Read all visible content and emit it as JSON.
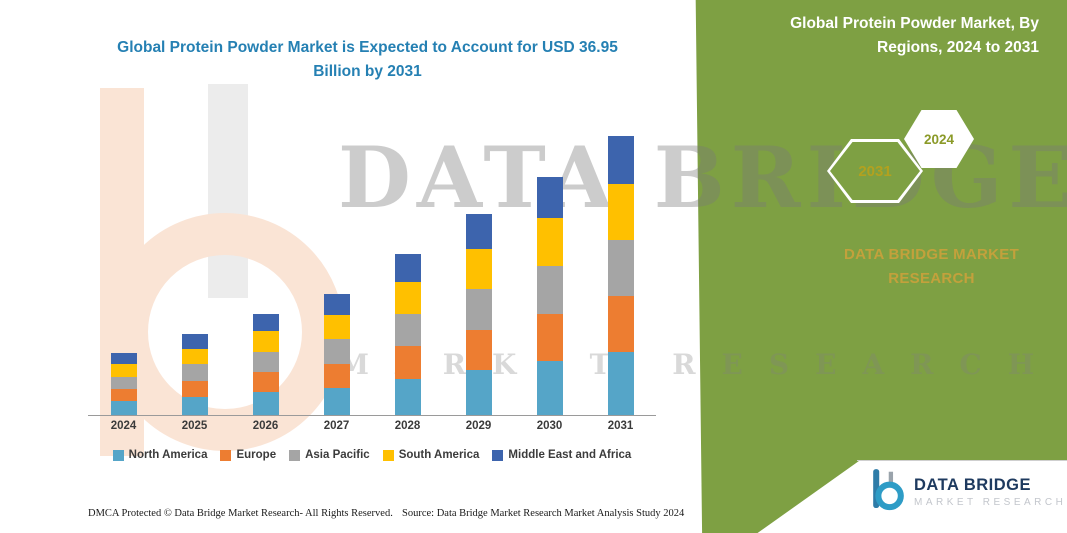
{
  "title": "Global Protein Powder Market is Expected to Account for USD 36.95 Billion by 2031",
  "side_panel": {
    "bg_color": "#7EA043",
    "heading": "Global Protein Powder Market, By Regions, 2024 to 2031",
    "badges": [
      {
        "label": "2031",
        "text_color": "#b3a11f"
      },
      {
        "label": "2024",
        "text_color": "#8b9a28"
      }
    ],
    "brand_text": "DATA BRIDGE MARKET RESEARCH"
  },
  "watermark": {
    "line1": "DATA BRIDGE",
    "line2": "MARKET RESEARCH"
  },
  "chart_data": {
    "type": "bar",
    "stacked": true,
    "title": "Global Protein Powder Market is Expected to Account for USD 36.95 Billion by 2031",
    "unit": "USD Billion",
    "categories": [
      "2024",
      "2025",
      "2026",
      "2027",
      "2028",
      "2029",
      "2030",
      "2031"
    ],
    "series": [
      {
        "name": "North America",
        "color": "#55A5C8",
        "values": [
          1.8,
          2.4,
          3.0,
          3.6,
          4.8,
          6.0,
          7.1,
          8.3
        ]
      },
      {
        "name": "Europe",
        "color": "#ED7D31",
        "values": [
          1.6,
          2.1,
          2.7,
          3.2,
          4.3,
          5.3,
          6.3,
          7.4
        ]
      },
      {
        "name": "Asia Pacific",
        "color": "#A5A5A5",
        "values": [
          1.7,
          2.2,
          2.7,
          3.3,
          4.3,
          5.4,
          6.4,
          7.5
        ]
      },
      {
        "name": "South America",
        "color": "#FFC000",
        "values": [
          1.6,
          2.1,
          2.7,
          3.2,
          4.2,
          5.3,
          6.3,
          7.4
        ]
      },
      {
        "name": "Middle East and Africa",
        "color": "#3D64AD",
        "values": [
          1.5,
          1.9,
          2.3,
          2.7,
          3.7,
          4.6,
          5.4,
          6.35
        ]
      }
    ],
    "totals": [
      8.2,
      10.7,
      13.4,
      16.0,
      21.3,
      26.6,
      31.5,
      36.95
    ],
    "ylim": [
      0,
      37
    ],
    "grid": false,
    "legend_position": "bottom"
  },
  "footer": {
    "dmca": "DMCA Protected © Data Bridge Market Research-  All Rights Reserved.",
    "source": "Source: Data Bridge Market Research  Market Analysis Study 2024"
  },
  "logo": {
    "name": "DATA BRIDGE",
    "subtitle": "MARKET RESEARCH"
  }
}
